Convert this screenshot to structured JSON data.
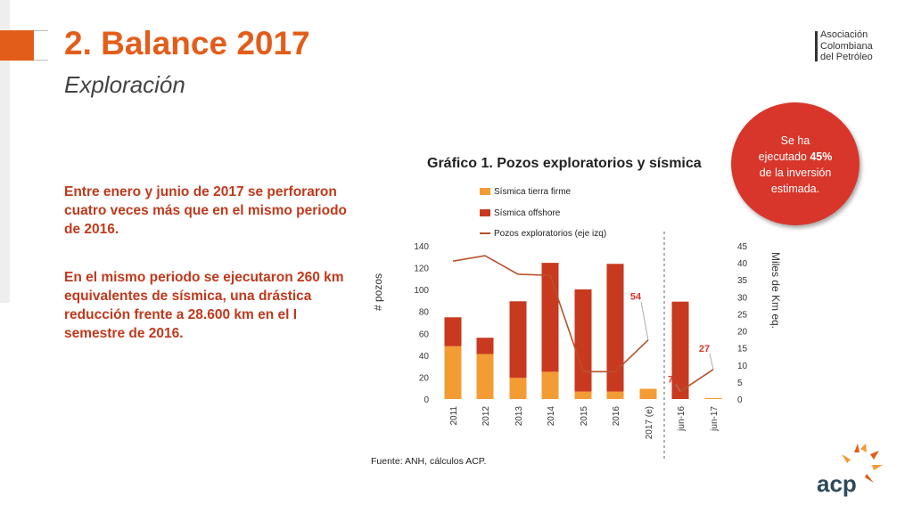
{
  "header": {
    "title": "2. Balance 2017",
    "subtitle": "Exploración"
  },
  "logo": {
    "lines": [
      "Asociación",
      "Colombiana",
      "del Petróleo"
    ],
    "brand": "acp"
  },
  "body": {
    "paragraph1": "Entre enero y junio de 2017 se perforaron cuatro veces más que en el mismo periodo de 2016.",
    "paragraph2": "En el mismo periodo se ejecutaron 260 km equivalentes de sísmica, una drástica reducción frente a 28.600 km en el I semestre de 2016."
  },
  "badge": {
    "line1": "Se ha",
    "line2_prefix": "ejecutado ",
    "line2_bold": "45%",
    "line3": "de la inversión",
    "line4": "estimada."
  },
  "source": "Fuente: ANH, cálculos ACP.",
  "colors": {
    "title_orange": "#e35d1a",
    "text_red": "#c0391c",
    "onshore": "#f39c34",
    "offshore": "#c8391f",
    "wells_line": "#b6522a",
    "badge_red": "#d8362a"
  },
  "chart_data": {
    "type": "bar",
    "title": "Gráfico 1. Pozos exploratorios y sísmica",
    "categories": [
      "2011",
      "2012",
      "2013",
      "2014",
      "2015",
      "2016",
      "2017 (e)",
      "jun-16",
      "jun-17"
    ],
    "y_left_label": "# pozos",
    "y_left_ticks": [
      "0",
      "20",
      "40",
      "60",
      "80",
      "100",
      "120",
      "140"
    ],
    "y_left_range": [
      0,
      140
    ],
    "y_right_label": "Miles de Km eq.",
    "y_right_ticks": [
      "0",
      "5",
      "10",
      "15",
      "20",
      "25",
      "30",
      "35",
      "40",
      "45"
    ],
    "y_right_range": [
      0,
      45
    ],
    "series": [
      {
        "name": "Sísmica tierra firme",
        "kind": "bar",
        "axis": "right",
        "values": [
          15.5,
          13.2,
          6.2,
          8.0,
          2.2,
          2.2,
          3.0,
          0.0,
          0.3
        ]
      },
      {
        "name": "Sísmica offshore",
        "kind": "bar",
        "axis": "right",
        "values": [
          8.5,
          4.8,
          22.5,
          32.0,
          30.0,
          37.5,
          0.0,
          28.6,
          0.0
        ]
      },
      {
        "name": "Pozos exploratorios (eje izq)",
        "kind": "line",
        "axis": "left",
        "values": [
          126,
          131,
          114,
          113,
          25,
          25,
          54,
          7,
          27
        ]
      }
    ],
    "data_labels": [
      {
        "category": "2017 (e)",
        "text": "54"
      },
      {
        "category": "jun-16",
        "text": "7"
      },
      {
        "category": "jun-17",
        "text": "27"
      }
    ],
    "grid": false,
    "legend_position": "top"
  }
}
